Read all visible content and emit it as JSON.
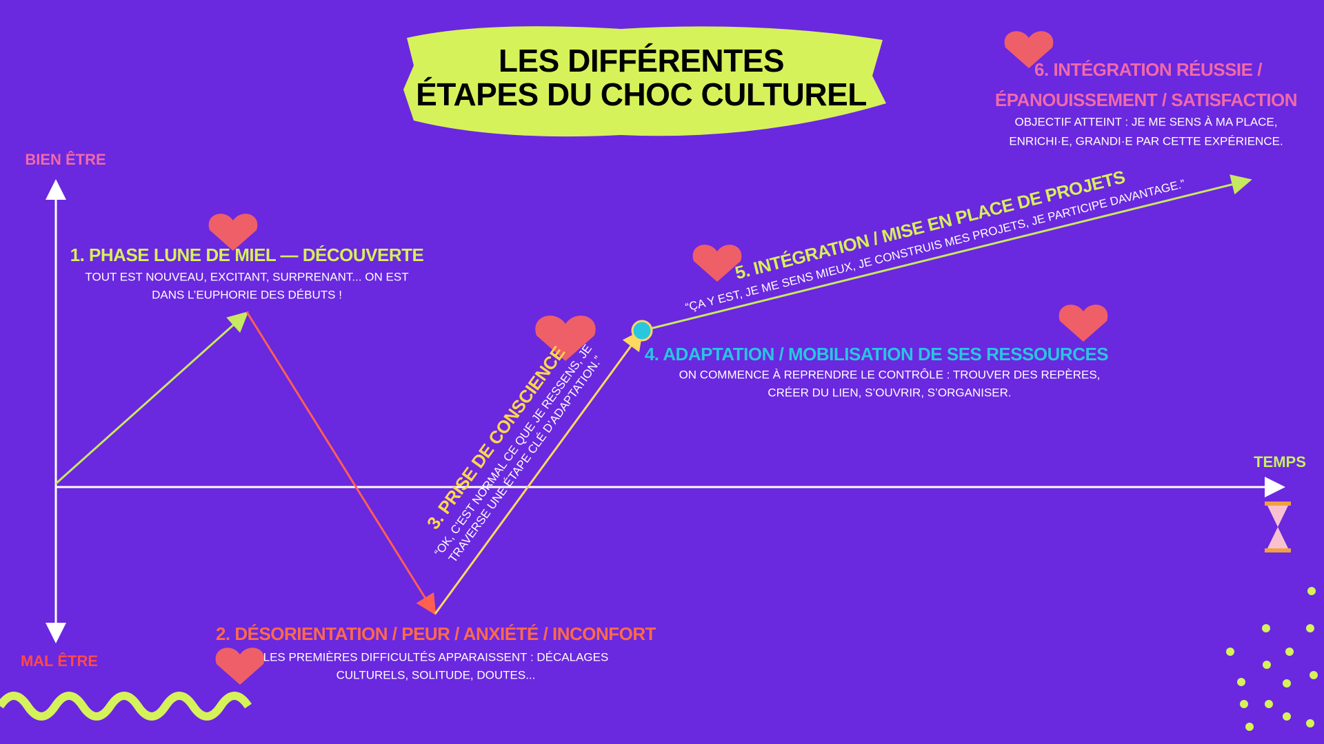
{
  "title": {
    "lines": [
      "LES DIFFÉRENTES",
      "ÉTAPES DU CHOC CULTUREL"
    ]
  },
  "axis": {
    "top": "BIEN ÊTRE",
    "bottom": "MAL ÊTRE",
    "right": "TEMPS"
  },
  "stages": [
    {
      "heading": "1. PHASE LUNE DE MIEL — DÉCOUVERTE",
      "body": [
        "TOUT EST NOUVEAU, EXCITANT, SURPRENANT... ON EST",
        "DANS L’EUPHORIE DES DÉBUTS !"
      ]
    },
    {
      "heading": "2. DÉSORIENTATION / PEUR / ANXIÉTÉ / INCONFORT",
      "body": [
        "LES PREMIÈRES DIFFICULTÉS APPARAISSENT : DÉCALAGES",
        "CULTURELS, SOLITUDE, DOUTES..."
      ]
    },
    {
      "heading": "3. PRISE DE CONSCIENCE",
      "body": [
        "“OK, C’EST NORMAL CE QUE JE RESSENS, JE",
        "TRAVERSE UNE ÉTAPE CLÉ D’ADAPTATION.”"
      ]
    },
    {
      "heading": "4. ADAPTATION / MOBILISATION DE SES RESSOURCES",
      "body": [
        "ON COMMENCE À REPRENDRE LE CONTRÔLE : TROUVER DES REPÈRES,",
        "CRÉER DU LIEN, S’OUVRIR, S’ORGANISER."
      ]
    },
    {
      "heading": "5. INTÉGRATION / MISE EN PLACE DE PROJETS",
      "body": [
        "“ÇA Y EST, JE ME SENS MIEUX, JE CONSTRUIS MES PROJETS, JE PARTICIPE DAVANTAGE.”"
      ]
    },
    {
      "heading": [
        "6. INTÉGRATION RÉUSSIE /",
        "ÉPANOUISSEMENT / SATISFACTION"
      ],
      "body": [
        "OBJECTIF ATTEINT : JE ME SENS À MA PLACE,",
        "ENRICHI·E, GRANDI·E PAR CETTE EXPÉRIENCE."
      ]
    }
  ]
}
